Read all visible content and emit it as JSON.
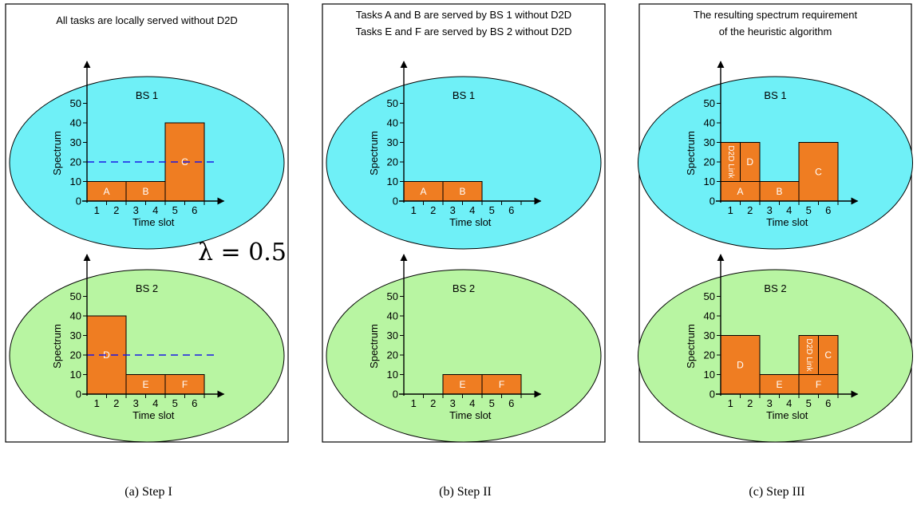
{
  "colors": {
    "bs1_fill": "#6ff0f7",
    "bs2_fill": "#b8f5a2",
    "task_fill": "#ef7d22",
    "threshold_line": "#1a1ae6"
  },
  "lambda_text": "λ = 0.5",
  "panels": [
    {
      "title_lines": [
        "All tasks are locally served without D2D"
      ],
      "caption": "(a)  Step I",
      "bs": [
        {
          "label": "BS 1",
          "threshold": 20,
          "tasks": [
            {
              "label": "A",
              "slot_start": 1,
              "slot_end": 2,
              "y0": 0,
              "y1": 10,
              "vertical": false
            },
            {
              "label": "B",
              "slot_start": 3,
              "slot_end": 4,
              "y0": 0,
              "y1": 10,
              "vertical": false
            },
            {
              "label": "C",
              "slot_start": 5,
              "slot_end": 6,
              "y0": 0,
              "y1": 40,
              "vertical": false
            }
          ]
        },
        {
          "label": "BS 2",
          "threshold": 20,
          "tasks": [
            {
              "label": "D",
              "slot_start": 1,
              "slot_end": 2,
              "y0": 0,
              "y1": 40,
              "vertical": false
            },
            {
              "label": "E",
              "slot_start": 3,
              "slot_end": 4,
              "y0": 0,
              "y1": 10,
              "vertical": false
            },
            {
              "label": "F",
              "slot_start": 5,
              "slot_end": 6,
              "y0": 0,
              "y1": 10,
              "vertical": false
            }
          ]
        }
      ]
    },
    {
      "title_lines": [
        "Tasks A and B are served by BS 1 without D2D",
        "Tasks E and F are served by BS 2 without D2D"
      ],
      "caption": "(b)  Step II",
      "bs": [
        {
          "label": "BS 1",
          "threshold": null,
          "tasks": [
            {
              "label": "A",
              "slot_start": 1,
              "slot_end": 2,
              "y0": 0,
              "y1": 10,
              "vertical": false
            },
            {
              "label": "B",
              "slot_start": 3,
              "slot_end": 4,
              "y0": 0,
              "y1": 10,
              "vertical": false
            }
          ]
        },
        {
          "label": "BS 2",
          "threshold": null,
          "tasks": [
            {
              "label": "E",
              "slot_start": 3,
              "slot_end": 4,
              "y0": 0,
              "y1": 10,
              "vertical": false
            },
            {
              "label": "F",
              "slot_start": 5,
              "slot_end": 6,
              "y0": 0,
              "y1": 10,
              "vertical": false
            }
          ]
        }
      ]
    },
    {
      "title_lines": [
        "The resulting spectrum requirement",
        "of the heuristic algorithm"
      ],
      "caption": "(c)  Step III",
      "bs": [
        {
          "label": "BS 1",
          "threshold": null,
          "tasks": [
            {
              "label": "A",
              "slot_start": 1,
              "slot_end": 2,
              "y0": 0,
              "y1": 10,
              "vertical": false
            },
            {
              "label": "D2D Link",
              "slot_start": 1,
              "slot_end": 1,
              "y0": 10,
              "y1": 30,
              "vertical": true
            },
            {
              "label": "D",
              "slot_start": 2,
              "slot_end": 2,
              "y0": 10,
              "y1": 30,
              "vertical": false
            },
            {
              "label": "B",
              "slot_start": 3,
              "slot_end": 4,
              "y0": 0,
              "y1": 10,
              "vertical": false
            },
            {
              "label": "C",
              "slot_start": 5,
              "slot_end": 6,
              "y0": 0,
              "y1": 30,
              "vertical": false
            }
          ]
        },
        {
          "label": "BS 2",
          "threshold": null,
          "tasks": [
            {
              "label": "D",
              "slot_start": 1,
              "slot_end": 2,
              "y0": 0,
              "y1": 30,
              "vertical": false
            },
            {
              "label": "E",
              "slot_start": 3,
              "slot_end": 4,
              "y0": 0,
              "y1": 10,
              "vertical": false
            },
            {
              "label": "F",
              "slot_start": 5,
              "slot_end": 6,
              "y0": 0,
              "y1": 10,
              "vertical": false
            },
            {
              "label": "D2D Link",
              "slot_start": 5,
              "slot_end": 5,
              "y0": 10,
              "y1": 30,
              "vertical": true
            },
            {
              "label": "C",
              "slot_start": 6,
              "slot_end": 6,
              "y0": 10,
              "y1": 30,
              "vertical": false
            }
          ]
        }
      ]
    }
  ],
  "axes": {
    "y_label": "Spectrum",
    "x_label": "Time slot",
    "y_ticks": [
      0,
      10,
      20,
      30,
      40,
      50
    ],
    "x_ticks": [
      1,
      2,
      3,
      4,
      5,
      6
    ]
  }
}
